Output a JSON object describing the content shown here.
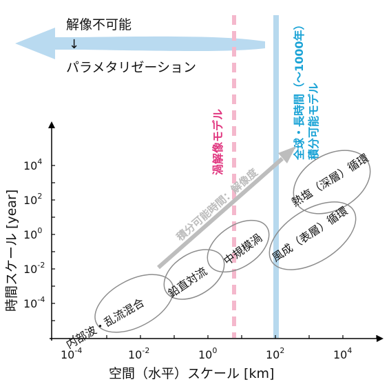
{
  "top_arrow": {
    "line1": "解像不可能",
    "arrow_glyph": "↓",
    "line2": "パラメタリゼーション"
  },
  "x_axis": {
    "label": "空間（水平）スケール [km]",
    "ticks": [
      {
        "base": "10",
        "exp": "-4"
      },
      {
        "base": "10",
        "exp": "-2"
      },
      {
        "base": "10",
        "exp": "0"
      },
      {
        "base": "10",
        "exp": "2"
      },
      {
        "base": "10",
        "exp": "4"
      }
    ]
  },
  "y_axis": {
    "label": "時間スケール [year]",
    "ticks": [
      {
        "base": "10",
        "exp": "4"
      },
      {
        "base": "10",
        "exp": "2"
      },
      {
        "base": "10",
        "exp": "0"
      },
      {
        "base": "10",
        "exp": "-2"
      },
      {
        "base": "10",
        "exp": "-4"
      }
    ]
  },
  "pink_line": {
    "label": "渦解像モデル",
    "color": "#f4b8cc",
    "text_color": "#e0367f",
    "x_km": 3
  },
  "blue_line": {
    "line1": "全球・長時間（〜1000年）",
    "line2": "積分可能モデル",
    "color": "#b7d9ee",
    "text_color": "#1aa3d6",
    "x_km": 100
  },
  "gray_arrow": {
    "label": "積分可能時間：解像度",
    "color": "#bdbdbd"
  },
  "phenomena": [
    {
      "label": "内部波・乱流混合"
    },
    {
      "label": "鉛直対流"
    },
    {
      "label": "中規模渦"
    },
    {
      "label": "風成（表層）循環"
    },
    {
      "label": "熱塩（深層）循環"
    }
  ],
  "colors": {
    "axis": "#000000",
    "ellipse": "#8c8c8c",
    "top_arrow": "#b9daf0",
    "text": "#111111"
  }
}
